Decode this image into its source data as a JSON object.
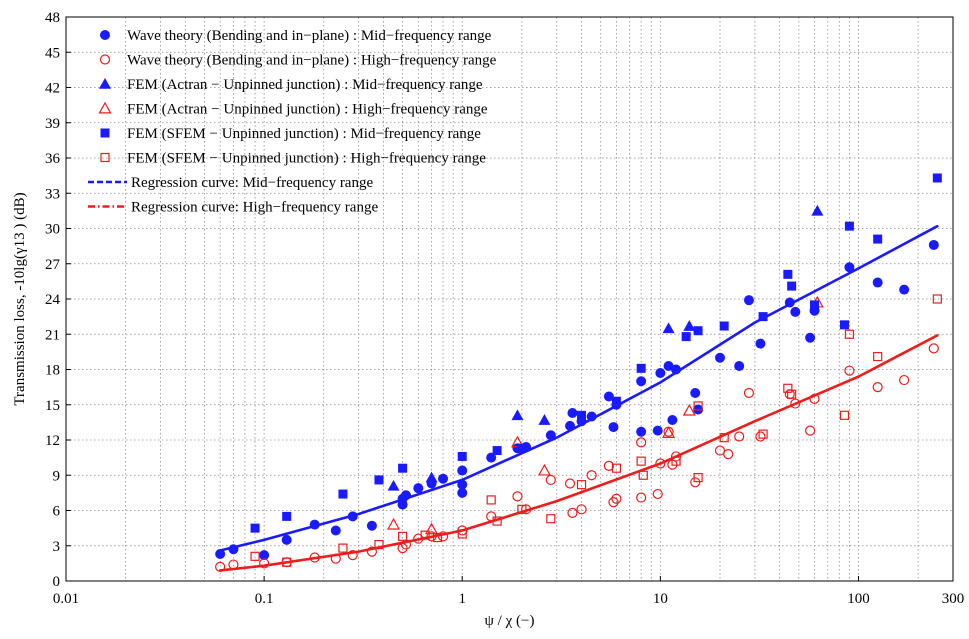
{
  "chart_data": {
    "type": "scatter",
    "xlabel": "ψ / χ (−)",
    "ylabel": "Transmission loss, -10lg(γ13 ) (dB)",
    "xscale": "log",
    "xlim": [
      0.01,
      300
    ],
    "ylim": [
      0,
      48
    ],
    "xticks": [
      {
        "value": 0.01,
        "label": "0.01"
      },
      {
        "value": 0.1,
        "label": "0.1"
      },
      {
        "value": 1,
        "label": "1"
      },
      {
        "value": 10,
        "label": "10"
      },
      {
        "value": 100,
        "label": "100"
      },
      {
        "value": 300,
        "label": "300"
      }
    ],
    "yticks": [
      0,
      3,
      6,
      9,
      12,
      15,
      18,
      21,
      24,
      27,
      30,
      33,
      36,
      39,
      42,
      45,
      48
    ],
    "grid": true,
    "legend_position": "top-left",
    "colors": {
      "mid": "#1a1aff",
      "high": "#ee1c1c"
    },
    "series": [
      {
        "name": "Wave theory (Bending and in−plane) : Mid−frequency range",
        "marker": "circle-filled",
        "color": "#1a1aff",
        "points": [
          [
            0.06,
            2.3
          ],
          [
            0.07,
            2.7
          ],
          [
            0.1,
            2.2
          ],
          [
            0.13,
            3.5
          ],
          [
            0.18,
            4.8
          ],
          [
            0.23,
            4.3
          ],
          [
            0.28,
            5.5
          ],
          [
            0.35,
            4.7
          ],
          [
            0.5,
            6.5
          ],
          [
            0.5,
            7
          ],
          [
            0.52,
            7.3
          ],
          [
            0.6,
            7.9
          ],
          [
            0.7,
            8.3
          ],
          [
            0.8,
            8.7
          ],
          [
            1.0,
            7.5
          ],
          [
            1.0,
            8.2
          ],
          [
            1.0,
            9.4
          ],
          [
            1.4,
            10.5
          ],
          [
            1.9,
            11.3
          ],
          [
            2.1,
            11.4
          ],
          [
            2.8,
            12.4
          ],
          [
            3.5,
            13.2
          ],
          [
            3.6,
            14.3
          ],
          [
            4,
            13.6
          ],
          [
            4.5,
            14
          ],
          [
            5.5,
            15.7
          ],
          [
            5.8,
            13.1
          ],
          [
            6,
            15
          ],
          [
            8,
            17
          ],
          [
            8,
            12.7
          ],
          [
            9.7,
            12.8
          ],
          [
            10,
            17.7
          ],
          [
            11,
            18.3
          ],
          [
            11.5,
            13.7
          ],
          [
            12,
            18
          ],
          [
            15,
            16
          ],
          [
            15.5,
            14.6
          ],
          [
            20,
            19
          ],
          [
            25,
            18.3
          ],
          [
            28,
            23.9
          ],
          [
            32,
            20.2
          ],
          [
            45,
            23.7
          ],
          [
            48,
            22.9
          ],
          [
            57,
            20.7
          ],
          [
            60,
            23
          ],
          [
            90,
            26.7
          ],
          [
            125,
            25.4
          ],
          [
            170,
            24.8
          ],
          [
            240,
            28.6
          ]
        ]
      },
      {
        "name": "Wave theory (Bending and in−plane) : High−frequency range",
        "marker": "circle-open",
        "color": "#ee1c1c",
        "points": [
          [
            0.06,
            1.2
          ],
          [
            0.07,
            1.4
          ],
          [
            0.1,
            1.5
          ],
          [
            0.13,
            1.6
          ],
          [
            0.18,
            2.0
          ],
          [
            0.23,
            1.9
          ],
          [
            0.28,
            2.2
          ],
          [
            0.35,
            2.5
          ],
          [
            0.5,
            2.8
          ],
          [
            0.52,
            3.1
          ],
          [
            0.6,
            3.6
          ],
          [
            0.7,
            3.8
          ],
          [
            0.8,
            3.8
          ],
          [
            1.0,
            4.3
          ],
          [
            1.4,
            5.5
          ],
          [
            1.9,
            7.2
          ],
          [
            2.1,
            6.1
          ],
          [
            2.8,
            8.6
          ],
          [
            3.5,
            8.3
          ],
          [
            3.6,
            5.8
          ],
          [
            4,
            6.1
          ],
          [
            4.5,
            9.0
          ],
          [
            5.5,
            9.8
          ],
          [
            5.8,
            6.7
          ],
          [
            6,
            7.0
          ],
          [
            8,
            11.8
          ],
          [
            8,
            7.1
          ],
          [
            9.7,
            7.4
          ],
          [
            10,
            10.0
          ],
          [
            11,
            12.7
          ],
          [
            11.5,
            9.9
          ],
          [
            12,
            10.6
          ],
          [
            15,
            8.4
          ],
          [
            20,
            11.1
          ],
          [
            22,
            10.8
          ],
          [
            25,
            12.3
          ],
          [
            28,
            16
          ],
          [
            32,
            12.3
          ],
          [
            45,
            15.9
          ],
          [
            48,
            15.1
          ],
          [
            57,
            12.8
          ],
          [
            60,
            15.5
          ],
          [
            90,
            17.9
          ],
          [
            125,
            16.5
          ],
          [
            170,
            17.1
          ],
          [
            240,
            19.8
          ]
        ]
      },
      {
        "name": "FEM (Actran − Unpinned junction) : Mid−frequency range",
        "marker": "triangle-filled",
        "color": "#1a1aff",
        "points": [
          [
            0.45,
            8.1
          ],
          [
            0.7,
            8.8
          ],
          [
            1.9,
            14.1
          ],
          [
            2.6,
            13.7
          ],
          [
            11,
            21.5
          ],
          [
            14,
            21.7
          ],
          [
            62,
            31.5
          ]
        ]
      },
      {
        "name": "FEM (Actran − Unpinned junction) : High−frequency range",
        "marker": "triangle-open",
        "color": "#ee1c1c",
        "points": [
          [
            0.45,
            4.8
          ],
          [
            0.7,
            4.4
          ],
          [
            1.9,
            11.8
          ],
          [
            2.6,
            9.4
          ],
          [
            11,
            12.6
          ],
          [
            14,
            14.5
          ],
          [
            62,
            23.7
          ]
        ]
      },
      {
        "name": "FEM (SFEM − Unpinned junction) : Mid−frequency range",
        "marker": "square-filled",
        "color": "#1a1aff",
        "points": [
          [
            0.09,
            4.5
          ],
          [
            0.13,
            5.5
          ],
          [
            0.25,
            7.4
          ],
          [
            0.38,
            8.6
          ],
          [
            0.5,
            9.6
          ],
          [
            1.0,
            10.6
          ],
          [
            1.5,
            11.1
          ],
          [
            2.0,
            11.3
          ],
          [
            4.0,
            14.1
          ],
          [
            6.0,
            15.3
          ],
          [
            8.0,
            18.1
          ],
          [
            13.5,
            20.8
          ],
          [
            15.5,
            21.3
          ],
          [
            21,
            21.7
          ],
          [
            33,
            22.5
          ],
          [
            44,
            26.1
          ],
          [
            46,
            25.1
          ],
          [
            60,
            23.5
          ],
          [
            85,
            21.8
          ],
          [
            90,
            30.2
          ],
          [
            125,
            29.1
          ],
          [
            250,
            34.3
          ]
        ]
      },
      {
        "name": "FEM (SFEM − Unpinned junction) : High−frequency range",
        "marker": "square-open",
        "color": "#ee1c1c",
        "points": [
          [
            0.09,
            2.1
          ],
          [
            0.13,
            1.6
          ],
          [
            0.25,
            2.8
          ],
          [
            0.38,
            3.1
          ],
          [
            0.5,
            3.8
          ],
          [
            0.65,
            3.9
          ],
          [
            0.75,
            3.7
          ],
          [
            1.0,
            4.0
          ],
          [
            1.4,
            6.9
          ],
          [
            1.5,
            5.1
          ],
          [
            2.0,
            6.1
          ],
          [
            2.8,
            5.3
          ],
          [
            4.0,
            8.2
          ],
          [
            6.0,
            9.6
          ],
          [
            8.0,
            10.2
          ],
          [
            8.2,
            9.0
          ],
          [
            12,
            10.2
          ],
          [
            15.5,
            8.8
          ],
          [
            15.5,
            14.9
          ],
          [
            21,
            12.2
          ],
          [
            33,
            12.5
          ],
          [
            44,
            16.4
          ],
          [
            46,
            15.9
          ],
          [
            85,
            14.1
          ],
          [
            90,
            21.0
          ],
          [
            125,
            19.1
          ],
          [
            250,
            24.0
          ]
        ]
      }
    ],
    "regression": [
      {
        "name": "Regression curve: Mid−frequency range",
        "color": "#1a1aff",
        "style": "dashed-solid",
        "points": [
          [
            0.06,
            2.6
          ],
          [
            0.1,
            3.5
          ],
          [
            0.3,
            5.7
          ],
          [
            1,
            8.6
          ],
          [
            3,
            12.2
          ],
          [
            10,
            16.9
          ],
          [
            30,
            22.0
          ],
          [
            100,
            26.6
          ],
          [
            250,
            30.2
          ]
        ]
      },
      {
        "name": "Regression curve: High−frequency range",
        "color": "#ee1c1c",
        "style": "dashdot-solid",
        "points": [
          [
            0.06,
            0.9
          ],
          [
            0.1,
            1.3
          ],
          [
            0.3,
            2.5
          ],
          [
            1,
            4.3
          ],
          [
            3,
            6.8
          ],
          [
            10,
            10.0
          ],
          [
            30,
            13.6
          ],
          [
            100,
            17.4
          ],
          [
            250,
            20.9
          ]
        ]
      }
    ]
  }
}
